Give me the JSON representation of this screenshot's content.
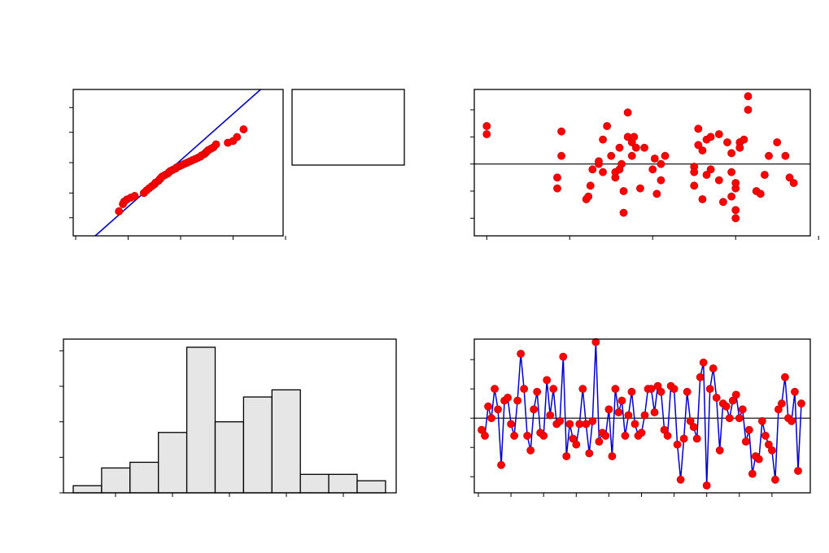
{
  "colors": {
    "points": "#ff0000",
    "point_edge": "#c00000",
    "fit_line": "#0000cc",
    "series_line": "#0000cc",
    "bar_fill": "#e6e6e6",
    "axis": "#000000"
  },
  "chart_data": [
    {
      "id": "normal-probability-plot",
      "type": "scatter",
      "title": "",
      "xlabel": "",
      "ylabel": "",
      "xlim": [
        -4,
        4
      ],
      "ylim": [
        0.1,
        99.9
      ],
      "y_scale": "probability",
      "grid": false,
      "fit_line": true,
      "x": [
        -2.35,
        -2.2,
        -2.15,
        -2.05,
        -1.9,
        -1.75,
        -1.4,
        -1.3,
        -1.2,
        -1.1,
        -1.0,
        -0.95,
        -0.85,
        -0.8,
        -0.75,
        -0.7,
        -0.6,
        -0.5,
        -0.45,
        -0.4,
        -0.3,
        -0.2,
        -0.15,
        -0.05,
        0.05,
        0.15,
        0.25,
        0.35,
        0.45,
        0.55,
        0.65,
        0.75,
        0.8,
        0.9,
        0.95,
        1.0,
        1.05,
        1.15,
        1.25,
        1.35,
        1.8,
        2.0,
        2.15,
        2.4
      ],
      "y": [
        2,
        4,
        5,
        6,
        7,
        8,
        10,
        12,
        14,
        16,
        18,
        20,
        22,
        24,
        26,
        28,
        30,
        32,
        34,
        36,
        38,
        40,
        42,
        44,
        46,
        48,
        50,
        52,
        54,
        56,
        58,
        60,
        62,
        64,
        66,
        68,
        70,
        72,
        74,
        78,
        80,
        82,
        86,
        92
      ]
    },
    {
      "id": "residual-vs-fit",
      "type": "scatter",
      "title": "",
      "xlabel": "",
      "ylabel": "",
      "xlim": [
        -4.3,
        3.8
      ],
      "ylim": [
        -2.65,
        2.75
      ],
      "reference_line": 0,
      "grid": false,
      "x": [
        -4.0,
        -4.0,
        -2.3,
        -2.3,
        -2.2,
        -2.2,
        -1.6,
        -1.55,
        -1.5,
        -1.45,
        -1.3,
        -1.3,
        -1.2,
        -1.2,
        -1.1,
        -1.0,
        -0.9,
        -0.9,
        -0.8,
        -0.8,
        -0.75,
        -0.7,
        -0.7,
        -0.6,
        -0.6,
        -0.5,
        -0.5,
        -0.45,
        -0.4,
        -0.3,
        -0.2,
        0.0,
        0.05,
        0.1,
        0.2,
        0.2,
        0.3,
        1.0,
        1.0,
        1.0,
        1.1,
        1.1,
        1.2,
        1.2,
        1.3,
        1.3,
        1.4,
        1.4,
        1.6,
        1.6,
        1.7,
        1.8,
        1.9,
        1.9,
        1.9,
        2.0,
        2.0,
        2.0,
        2.0,
        2.1,
        2.1,
        2.1,
        2.2,
        2.3,
        2.3,
        2.5,
        2.6,
        2.7,
        2.8,
        3.0,
        3.2,
        3.3,
        3.4
      ],
      "y": [
        1.4,
        1.1,
        -0.9,
        -0.5,
        1.2,
        0.3,
        -1.3,
        -1.2,
        -0.8,
        -0.2,
        0.0,
        0.1,
        -0.3,
        0.9,
        1.4,
        0.3,
        -0.5,
        -0.3,
        -0.2,
        0.6,
        0.0,
        -1.8,
        -1.0,
        1.9,
        1.0,
        0.8,
        0.3,
        1.0,
        0.6,
        -0.9,
        0.6,
        -0.2,
        0.2,
        -1.1,
        -0.6,
        0.0,
        0.3,
        -0.8,
        -0.1,
        -0.3,
        1.3,
        0.7,
        0.5,
        -1.3,
        -0.4,
        0.9,
        -0.2,
        1.0,
        1.1,
        -0.6,
        -1.4,
        0.8,
        -1.2,
        -0.3,
        0.4,
        -2.0,
        -1.7,
        -0.9,
        -0.7,
        0.8,
        0.6,
        0.6,
        0.9,
        2.0,
        2.5,
        -1.0,
        -1.1,
        -0.4,
        0.3,
        0.8,
        0.3,
        -0.5,
        -0.7
      ]
    },
    {
      "id": "histogram",
      "type": "bar",
      "title": "",
      "xlabel": "",
      "ylabel": "",
      "ylim": [
        0,
        20.5
      ],
      "grid": false,
      "values": [
        1,
        3.5,
        4.3,
        8.5,
        20.5,
        10,
        13.5,
        14.5,
        2.6,
        2.6,
        1.7
      ]
    },
    {
      "id": "residual-vs-order",
      "type": "line",
      "title": "",
      "xlabel": "",
      "ylabel": "",
      "xlim": [
        0,
        101
      ],
      "ylim": [
        -2.55,
        2.7
      ],
      "reference_line": 0,
      "grid": false,
      "markers": true,
      "x": [
        1,
        2,
        3,
        4,
        5,
        6,
        7,
        8,
        9,
        10,
        11,
        12,
        13,
        14,
        15,
        16,
        17,
        18,
        19,
        20,
        21,
        22,
        23,
        24,
        25,
        26,
        27,
        28,
        29,
        30,
        31,
        32,
        33,
        34,
        35,
        36,
        37,
        38,
        39,
        40,
        41,
        42,
        43,
        44,
        45,
        46,
        47,
        48,
        49,
        50,
        51,
        52,
        53,
        54,
        55,
        56,
        57,
        58,
        59,
        60,
        61,
        62,
        63,
        64,
        65,
        66,
        67,
        68,
        69,
        70,
        71,
        72,
        73,
        74,
        75,
        76,
        77,
        78,
        79,
        80,
        81,
        82,
        83,
        84,
        85,
        86,
        87,
        88,
        89,
        90,
        91,
        92,
        93,
        94,
        95,
        96,
        97,
        98,
        99
      ],
      "y": [
        -0.4,
        -0.6,
        0.4,
        0.0,
        1.0,
        0.3,
        -1.6,
        0.6,
        0.7,
        -0.2,
        -0.6,
        0.6,
        2.2,
        1.0,
        -0.6,
        -1.1,
        0.3,
        0.9,
        -0.5,
        -0.6,
        1.3,
        0.1,
        1.0,
        -0.2,
        -0.1,
        2.1,
        -1.3,
        -0.2,
        -0.7,
        -0.9,
        -0.2,
        1.0,
        -0.2,
        -1.2,
        -0.1,
        2.6,
        -0.8,
        -0.5,
        -0.6,
        0.3,
        -1.3,
        1.0,
        0.2,
        0.6,
        -0.6,
        0.1,
        0.9,
        -0.2,
        -0.6,
        -0.5,
        0.1,
        1.0,
        1.0,
        0.2,
        1.1,
        0.9,
        -0.4,
        -0.6,
        1.1,
        1.0,
        -0.9,
        -2.1,
        -0.7,
        0.9,
        -0.1,
        -0.3,
        -0.7,
        1.4,
        1.9,
        -2.3,
        1.0,
        1.7,
        0.7,
        -1.1,
        0.5,
        0.4,
        0.0,
        0.6,
        0.8,
        0.0,
        0.3,
        -0.8,
        -0.4,
        -1.9,
        -1.3,
        -1.4,
        -0.1,
        -0.6,
        -0.9,
        -1.1,
        -2.1,
        0.3,
        0.5,
        1.4,
        0.0,
        -0.1,
        0.9,
        -1.8,
        0.5
      ]
    }
  ]
}
